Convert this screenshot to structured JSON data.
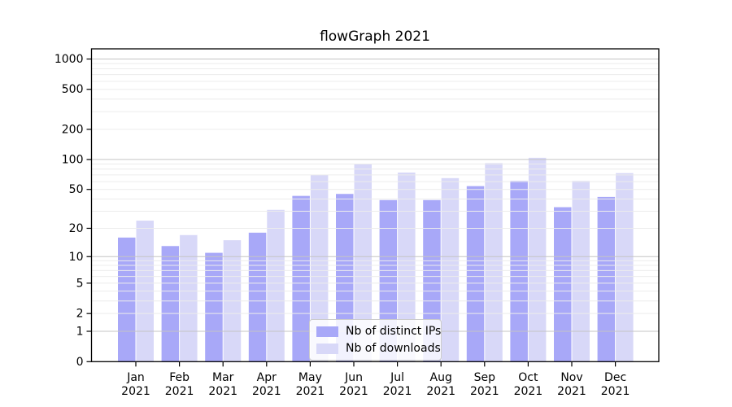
{
  "title": "flowGraph 2021",
  "chart_data": {
    "type": "bar",
    "title": "flowGraph 2021",
    "categories": [
      "Jan",
      "Feb",
      "Mar",
      "Apr",
      "May",
      "Jun",
      "Jul",
      "Aug",
      "Sep",
      "Oct",
      "Nov",
      "Dec"
    ],
    "category_year": "2021",
    "series": [
      {
        "name": "Nb of distinct IPs",
        "color": "#a8a8f8",
        "values": [
          16,
          13,
          11,
          18,
          43,
          45,
          39,
          39,
          54,
          61,
          33,
          42
        ]
      },
      {
        "name": "Nb of downloads",
        "color": "#d8d8f8",
        "values": [
          24,
          17,
          15,
          31,
          70,
          90,
          74,
          65,
          92,
          104,
          61,
          73
        ]
      }
    ],
    "y_axis": {
      "scale": "log1p",
      "tick_labels": [
        0,
        1,
        2,
        5,
        10,
        20,
        50,
        100,
        200,
        500,
        1000
      ],
      "major_gridlines": [
        1,
        10,
        100,
        1000
      ]
    },
    "legend": {
      "position": "lower-center"
    },
    "grid": {
      "major_color": "#c4c4c4",
      "minor_color": "#ececec"
    },
    "axis_color": "#000000",
    "text_color": "#000000"
  }
}
